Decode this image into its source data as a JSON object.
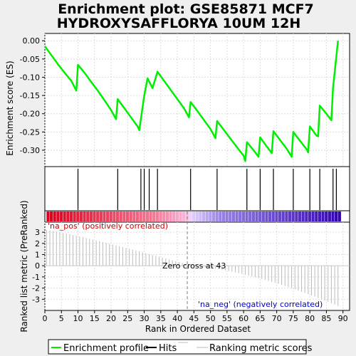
{
  "chart_data": {
    "type": "line",
    "title_line1": "Enrichment plot: GSE85871 MCF7",
    "title_line2": "HYDROXYSAFFLORYA 10UM 12H",
    "es_panel": {
      "ylabel": "Enrichment score (ES)",
      "ylim": [
        -0.345,
        0.02
      ],
      "yticks": [
        "0.00",
        "-0.05",
        "-0.10",
        "-0.15",
        "-0.20",
        "-0.25",
        "-0.30"
      ],
      "ytick_values": [
        0.0,
        -0.05,
        -0.1,
        -0.15,
        -0.2,
        -0.25,
        -0.3
      ],
      "line_color": "#00ee00",
      "x": [
        0,
        2,
        4,
        6,
        8,
        9.5,
        10,
        12,
        14,
        16,
        18,
        20,
        21.5,
        22,
        24,
        26,
        28,
        28.5,
        30,
        31,
        32.5,
        34,
        36,
        38,
        40,
        42,
        43.5,
        44,
        46,
        48,
        50,
        51.5,
        52,
        54,
        56,
        58,
        60,
        60.5,
        61,
        63,
        64.5,
        65,
        67,
        68.5,
        69,
        71,
        73,
        74.5,
        75,
        77,
        79,
        79.5,
        80,
        82,
        82.5,
        83,
        85,
        86.5,
        87,
        88.5
      ],
      "y": [
        -0.015,
        -0.04,
        -0.065,
        -0.088,
        -0.11,
        -0.137,
        -0.066,
        -0.088,
        -0.113,
        -0.137,
        -0.163,
        -0.19,
        -0.215,
        -0.16,
        -0.185,
        -0.21,
        -0.235,
        -0.245,
        -0.15,
        -0.103,
        -0.13,
        -0.085,
        -0.11,
        -0.135,
        -0.16,
        -0.185,
        -0.21,
        -0.168,
        -0.192,
        -0.217,
        -0.242,
        -0.267,
        -0.22,
        -0.244,
        -0.268,
        -0.292,
        -0.315,
        -0.33,
        -0.278,
        -0.3,
        -0.318,
        -0.265,
        -0.29,
        -0.308,
        -0.248,
        -0.272,
        -0.296,
        -0.318,
        -0.25,
        -0.274,
        -0.297,
        -0.306,
        -0.235,
        -0.26,
        -0.262,
        -0.178,
        -0.2,
        -0.218,
        -0.13,
        0.0
      ]
    },
    "hits": [
      10,
      22,
      29,
      30,
      31.5,
      34,
      44,
      52,
      61,
      65,
      69,
      75,
      80,
      83,
      87,
      88
    ],
    "rank_panel": {
      "ylabel": "Ranked list metric (PreRanked)",
      "xlabel": "Rank in Ordered Dataset",
      "ylim": [
        -4,
        3.9
      ],
      "yticks": [
        "3",
        "2",
        "1",
        "0",
        "-1",
        "-2",
        "-3"
      ],
      "ytick_values": [
        3,
        2,
        1,
        0,
        -1,
        -2,
        -3
      ],
      "xlim": [
        0,
        92
      ],
      "xticks": [
        "0",
        "5",
        "10",
        "15",
        "20",
        "25",
        "30",
        "35",
        "40",
        "45",
        "50",
        "55",
        "60",
        "65",
        "70",
        "75",
        "80",
        "85",
        "90"
      ],
      "xtick_values": [
        0,
        5,
        10,
        15,
        20,
        25,
        30,
        35,
        40,
        45,
        50,
        55,
        60,
        65,
        70,
        75,
        80,
        85,
        90
      ],
      "n_genes": 89,
      "metric_start": 3.2,
      "metric_zero_rank": 43,
      "metric_end": -3.6,
      "zero_cross_label": "Zero cross at 43",
      "pos_label": "'na_pos' (positively correlated)",
      "neg_label": "'na_neg' (negatively correlated)"
    },
    "legend": [
      "Enrichment profile",
      "Hits",
      "Ranking metric scores"
    ],
    "colors": {
      "hits": "#000000",
      "metric": "#bbbbbb",
      "pos_text": "#cc0000",
      "neg_text": "#0000cc",
      "zero_line": "#808080"
    }
  }
}
